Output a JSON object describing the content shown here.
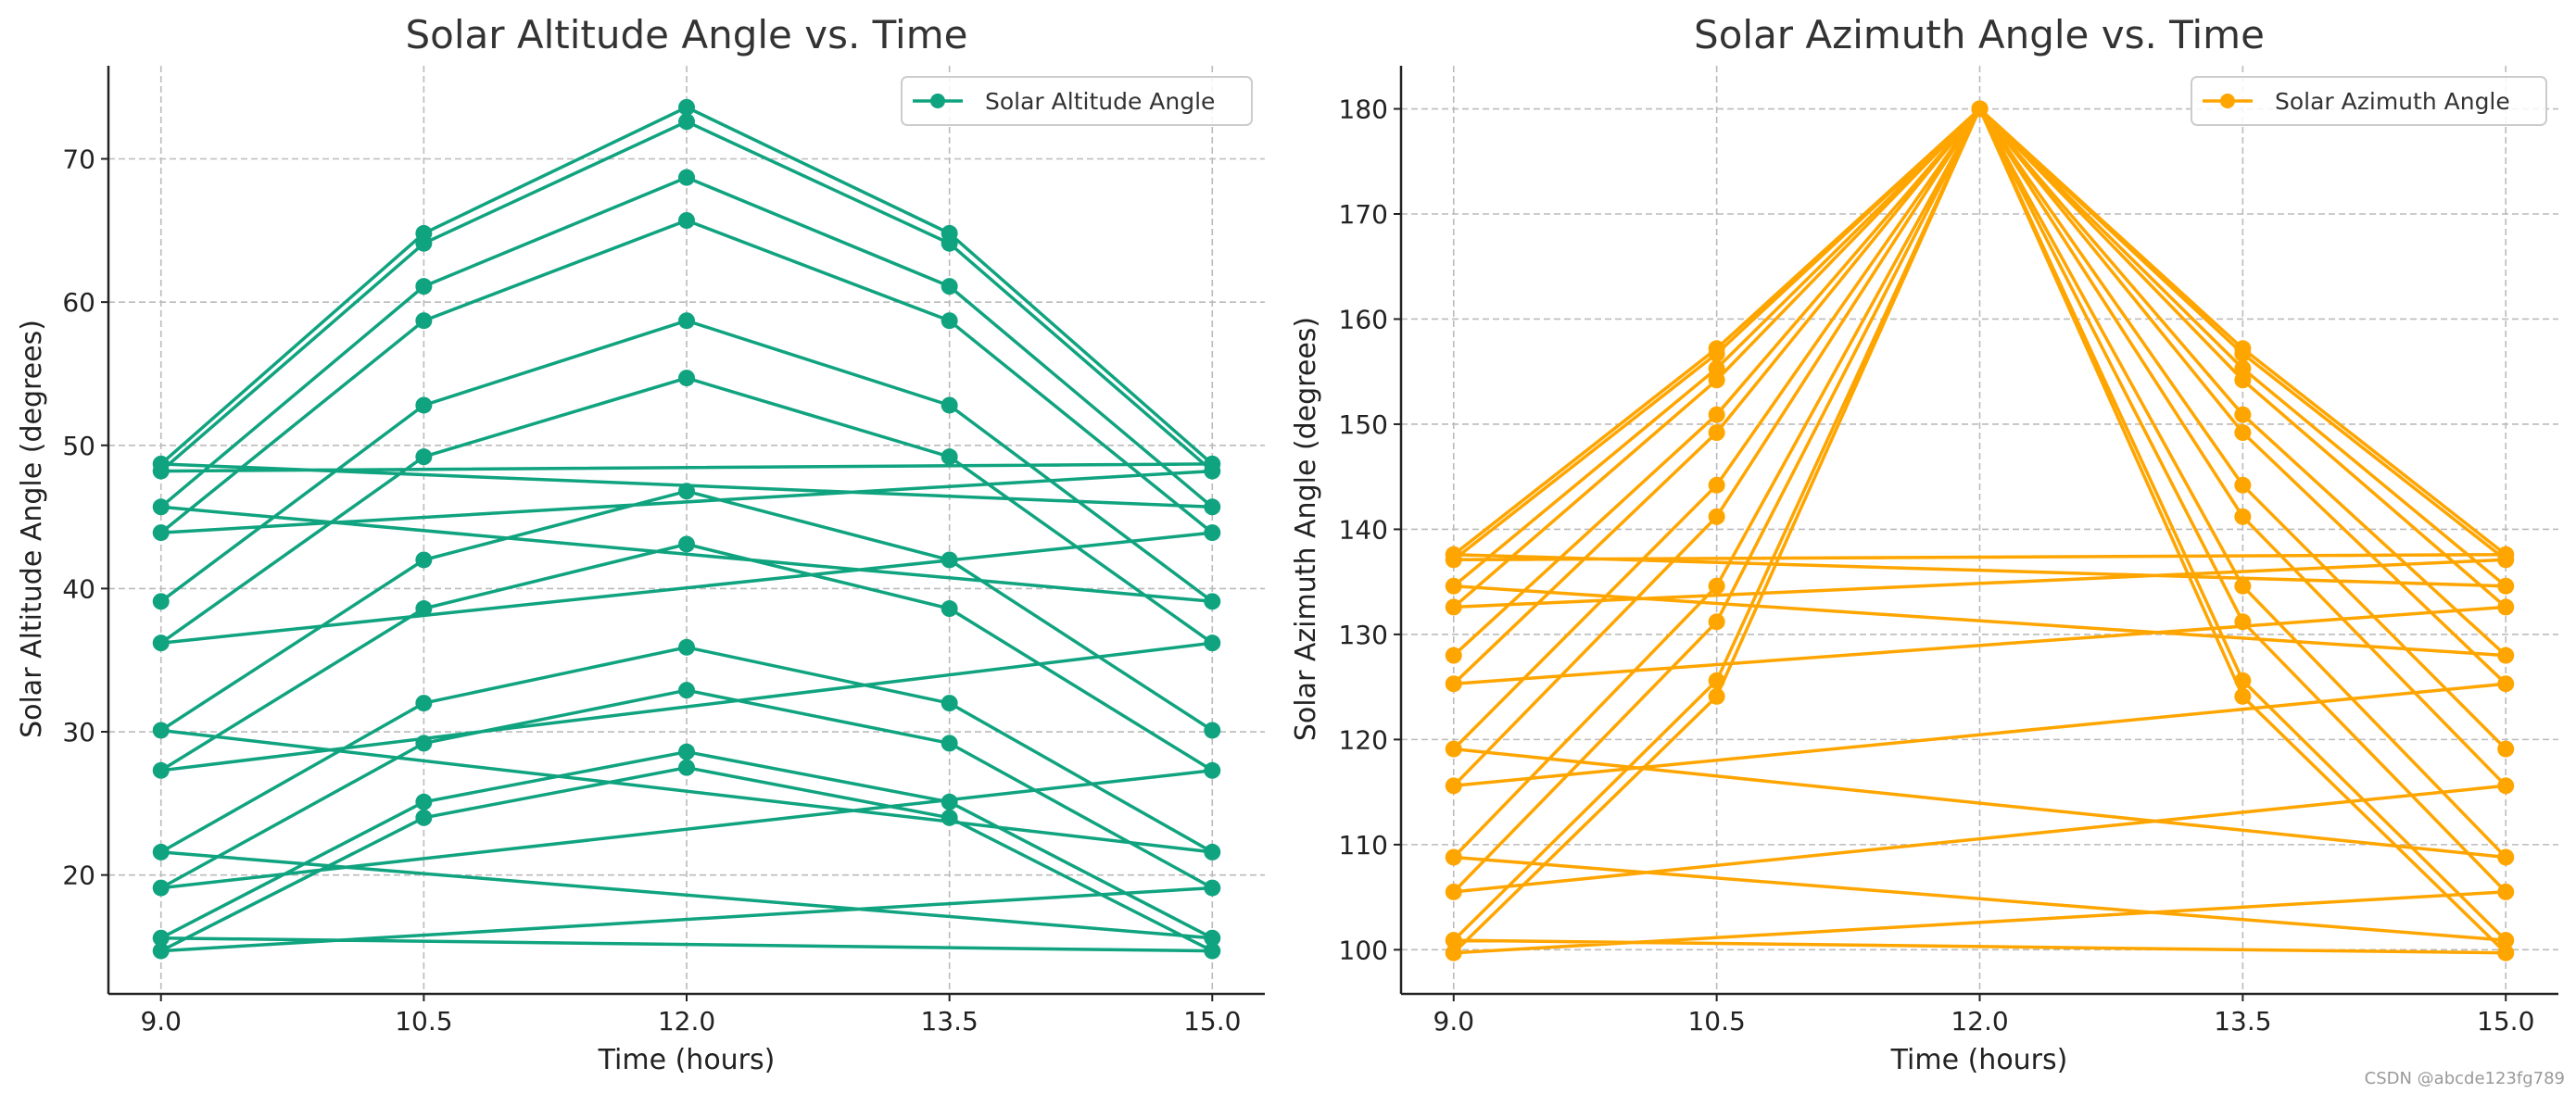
{
  "watermark": "CSDN @abcde123fg789",
  "chart_data": [
    {
      "type": "line",
      "title": "Solar Altitude Angle vs. Time",
      "xlabel": "Time (hours)",
      "ylabel": "Solar Altitude Angle (degrees)",
      "xlim": [
        8.7,
        15.3
      ],
      "ylim": [
        11.7,
        76.5
      ],
      "xticks": [
        9.0,
        10.5,
        12.0,
        13.5,
        15.0
      ],
      "xtick_labels": [
        "9.0",
        "10.5",
        "12.0",
        "13.5",
        "15.0"
      ],
      "yticks": [
        20,
        30,
        40,
        50,
        60,
        70
      ],
      "ytick_labels": [
        "20",
        "30",
        "40",
        "50",
        "60",
        "70"
      ],
      "grid": true,
      "legend": {
        "placement": "top-right",
        "entries": [
          "Solar Altitude Angle"
        ]
      },
      "color": "#10a37f",
      "series": [
        {
          "name": "Solar Altitude Angle",
          "x": [
            9,
            10.5,
            12,
            13.5,
            15,
            9,
            10.5,
            12,
            13.5,
            15,
            9,
            10.5,
            12,
            13.5,
            15,
            9,
            10.5,
            12,
            13.5,
            15,
            9,
            10.5,
            12,
            13.5,
            15,
            9,
            10.5,
            12,
            13.5,
            15,
            9,
            10.5,
            12,
            13.5,
            15,
            9,
            10.5,
            12,
            13.5,
            15,
            9,
            10.5,
            12,
            13.5,
            15,
            9,
            10.5,
            12,
            13.5,
            15,
            9,
            10.5,
            12,
            13.5,
            15,
            9,
            10.5,
            12,
            13.5,
            15
          ],
          "y": [
            39.1,
            52.8,
            58.7,
            52.8,
            39.1,
            45.7,
            61.1,
            68.7,
            61.1,
            45.7,
            48.7,
            64.8,
            73.6,
            64.8,
            48.7,
            48.2,
            64.1,
            72.6,
            64.1,
            48.2,
            43.9,
            58.7,
            65.7,
            58.7,
            43.9,
            36.2,
            49.2,
            54.7,
            49.2,
            36.2,
            27.3,
            38.6,
            43.1,
            38.6,
            27.3,
            19.1,
            29.2,
            32.9,
            29.2,
            19.1,
            14.7,
            24.0,
            27.5,
            24.0,
            14.7,
            15.6,
            25.1,
            28.6,
            25.1,
            15.6,
            21.6,
            32.0,
            35.9,
            32.0,
            21.6,
            30.1,
            42.0,
            46.8,
            42.0,
            30.1
          ]
        }
      ]
    },
    {
      "type": "line",
      "title": "Solar Azimuth Angle vs. Time",
      "xlabel": "Time (hours)",
      "ylabel": "Solar Azimuth Angle (degrees)",
      "xlim": [
        8.7,
        15.3
      ],
      "ylim": [
        95.8,
        184.1
      ],
      "xticks": [
        9.0,
        10.5,
        12.0,
        13.5,
        15.0
      ],
      "xtick_labels": [
        "9.0",
        "10.5",
        "12.0",
        "13.5",
        "15.0"
      ],
      "yticks": [
        100,
        110,
        120,
        130,
        140,
        150,
        160,
        170,
        180
      ],
      "ytick_labels": [
        "100",
        "110",
        "120",
        "130",
        "140",
        "150",
        "160",
        "170",
        "180"
      ],
      "grid": true,
      "legend": {
        "placement": "top-right",
        "entries": [
          "Solar Azimuth Angle"
        ]
      },
      "color": "#ffa500",
      "series": [
        {
          "name": "Solar Azimuth Angle",
          "x": [
            9,
            10.5,
            12,
            13.5,
            15,
            9,
            10.5,
            12,
            13.5,
            15,
            9,
            10.5,
            12,
            13.5,
            15,
            9,
            10.5,
            12,
            13.5,
            15,
            9,
            10.5,
            12,
            13.5,
            15,
            9,
            10.5,
            12,
            13.5,
            15,
            9,
            10.5,
            12,
            13.5,
            15,
            9,
            10.5,
            12,
            13.5,
            15,
            9,
            10.5,
            12,
            13.5,
            15,
            9,
            10.5,
            12,
            13.5,
            15,
            9,
            10.5,
            12,
            13.5,
            15,
            9,
            10.5,
            12,
            13.5,
            15
          ],
          "y": [
            128.0,
            150.9,
            180,
            150.9,
            128.0,
            134.6,
            155.3,
            180,
            155.3,
            134.6,
            137.6,
            157.2,
            180,
            157.2,
            137.6,
            137.1,
            156.7,
            180,
            156.7,
            137.1,
            132.6,
            154.2,
            180,
            154.2,
            132.6,
            125.3,
            149.2,
            180,
            149.2,
            125.3,
            115.6,
            141.2,
            180,
            141.2,
            115.6,
            105.5,
            131.2,
            180,
            131.2,
            105.5,
            99.7,
            124.1,
            180,
            124.1,
            99.7,
            100.9,
            125.6,
            180,
            125.6,
            100.9,
            108.8,
            134.6,
            180,
            134.6,
            108.8,
            119.1,
            144.2,
            180,
            144.2,
            119.1
          ]
        }
      ]
    }
  ]
}
